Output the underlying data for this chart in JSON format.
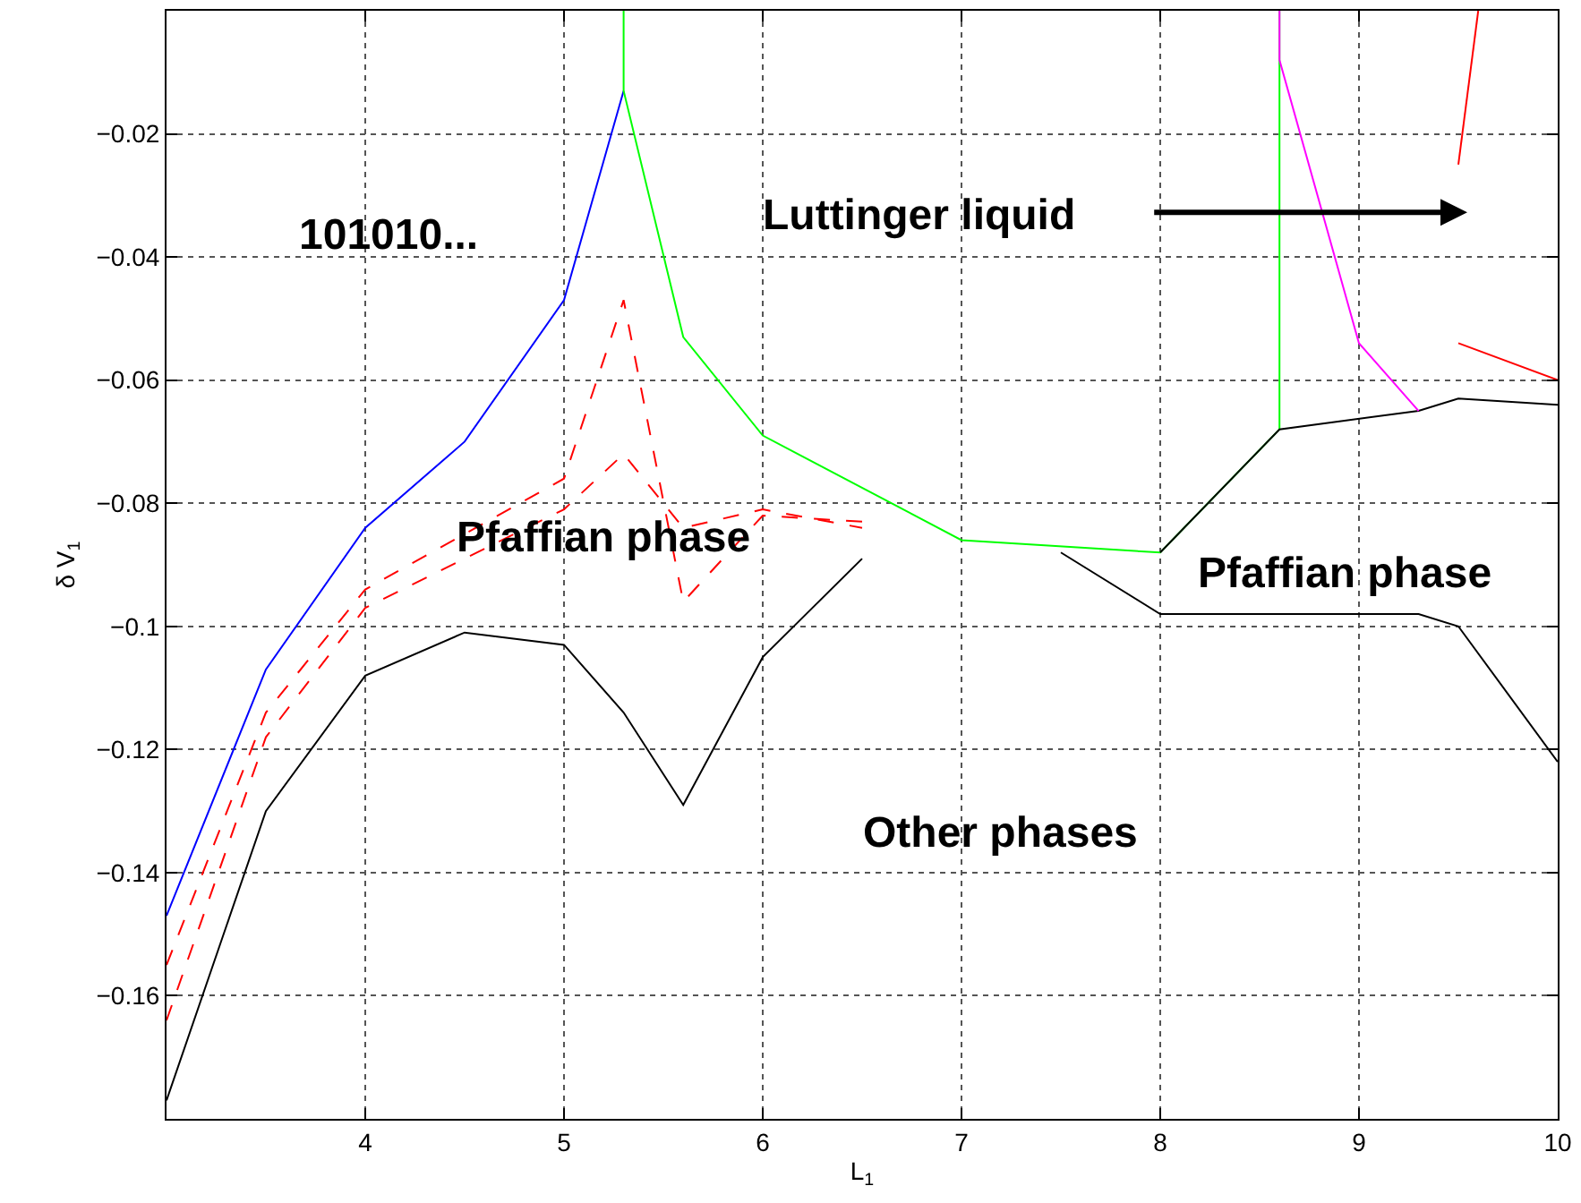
{
  "chart_data": {
    "type": "line",
    "xlabel": "L$_{1}$",
    "ylabel": "δ V$_{1}$",
    "xlim": [
      3,
      10
    ],
    "xticks": [
      4,
      5,
      6,
      7,
      8,
      9,
      10
    ],
    "ylim": [
      -0.18,
      0
    ],
    "yticks": [
      -0.16,
      -0.14,
      -0.12,
      -0.1,
      -0.08,
      -0.06,
      -0.04,
      -0.02
    ],
    "grid": true,
    "marker": "none",
    "series": [
      {
        "color": "#0000ff",
        "x": [
          3,
          3.5,
          4,
          4.5,
          5,
          5.3
        ],
        "values": [
          -0.147,
          -0.107,
          -0.084,
          -0.07,
          -0.047,
          -0.013
        ]
      },
      {
        "color": "#00ff00",
        "x": [
          5.3,
          5.3,
          5.6,
          6,
          7,
          8,
          8.6,
          8.6
        ],
        "values": [
          0,
          -0.013,
          -0.053,
          -0.069,
          -0.086,
          -0.088,
          -0.068,
          0
        ]
      },
      {
        "color": "#ff0000",
        "line_style": "dashed",
        "x": [
          3,
          3.5,
          4,
          5,
          5.3,
          5.6,
          6,
          6.5
        ],
        "values": [
          -0.155,
          -0.114,
          -0.094,
          -0.076,
          -0.047,
          -0.096,
          -0.082,
          -0.083
        ]
      },
      {
        "color": "#ff0000",
        "line_style": "dashed",
        "x": [
          3,
          3.5,
          4,
          5,
          5.3,
          5.6,
          6,
          6.5
        ],
        "values": [
          -0.164,
          -0.118,
          -0.097,
          -0.081,
          -0.072,
          -0.084,
          -0.081,
          -0.084
        ]
      },
      {
        "color": "#000000",
        "x": [
          3,
          3.5,
          4,
          4.5,
          5,
          5.3,
          5.6,
          6,
          6.5
        ],
        "values": [
          -0.177,
          -0.13,
          -0.108,
          -0.101,
          -0.103,
          -0.114,
          -0.129,
          -0.105,
          -0.089
        ]
      },
      {
        "color": "#000000",
        "x": [
          7.5,
          8,
          9.3,
          9.5,
          10
        ],
        "values": [
          -0.088,
          -0.098,
          -0.098,
          -0.1,
          -0.122
        ]
      },
      {
        "color": "#000000",
        "x": [
          8,
          8.6,
          9.3,
          9.5,
          10
        ],
        "values": [
          -0.088,
          -0.068,
          -0.065,
          -0.063,
          -0.064
        ]
      },
      {
        "color": "#ff00ff",
        "x": [
          8.6,
          8.6,
          9,
          9.3
        ],
        "values": [
          0,
          -0.008,
          -0.054,
          -0.065
        ]
      },
      {
        "color": "#ff0000",
        "x": [
          9.5,
          9.6
        ],
        "values": [
          -0.025,
          0
        ]
      },
      {
        "color": "#ff0000",
        "x": [
          9.5,
          10
        ],
        "values": [
          -0.054,
          -0.06
        ]
      }
    ],
    "annotations": [
      "101010...",
      "Luttinger liquid",
      "Pfaffian phase",
      "Pfaffian phase",
      "Other phases"
    ]
  }
}
